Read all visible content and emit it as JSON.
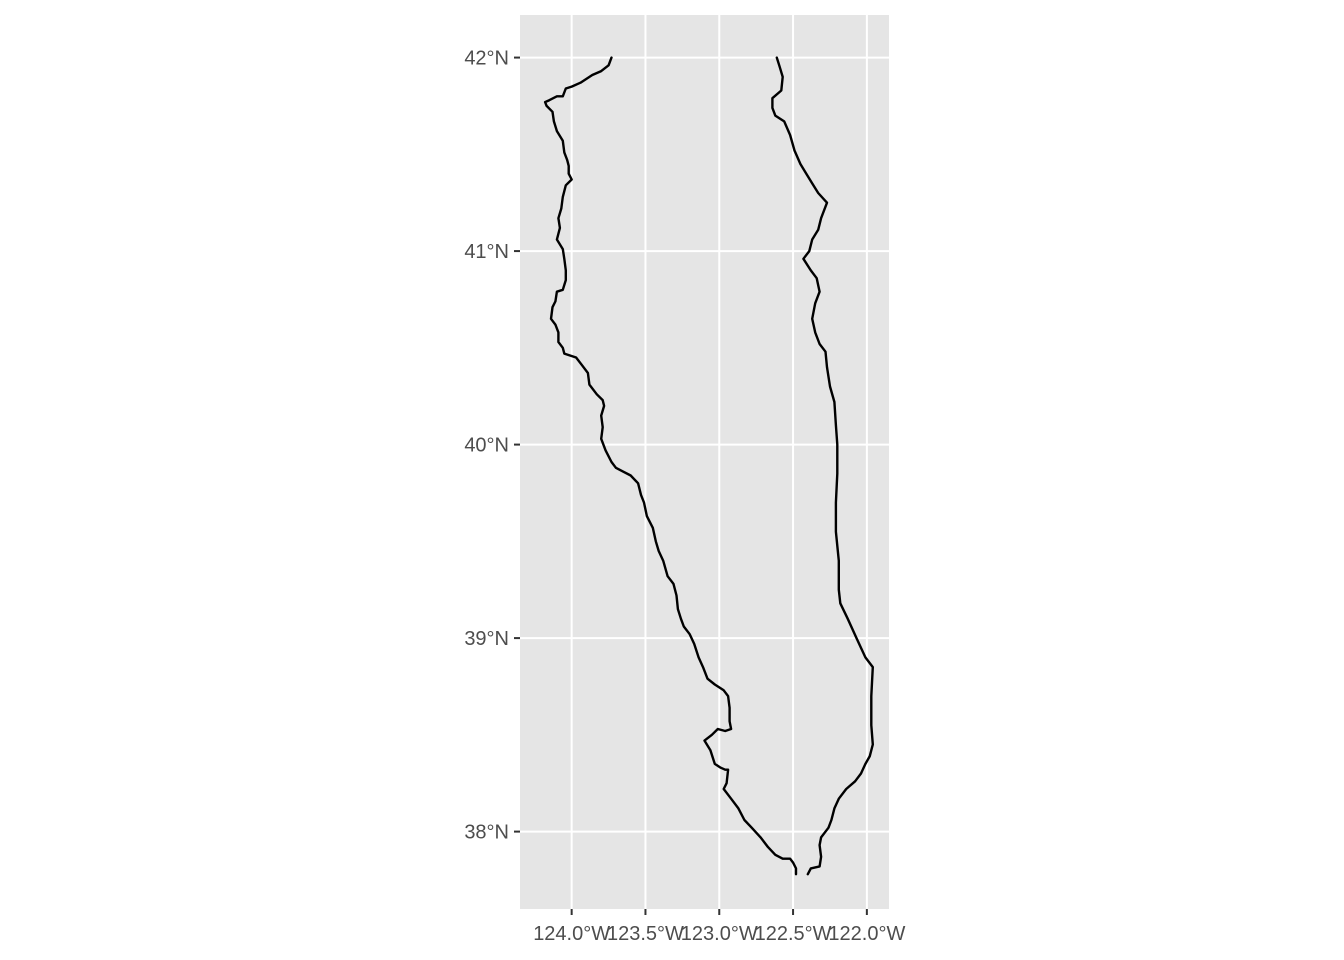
{
  "chart_data": {
    "type": "map",
    "projection": "geographic",
    "xlim": [
      -124.35,
      -121.85
    ],
    "ylim": [
      37.6,
      42.22
    ],
    "x_ticks": [
      {
        "value": -124.0,
        "label": "124.0°W"
      },
      {
        "value": -123.5,
        "label": "123.5°W"
      },
      {
        "value": -123.0,
        "label": "123.0°W"
      },
      {
        "value": -122.5,
        "label": "122.5°W"
      },
      {
        "value": -122.0,
        "label": "122.0°W"
      }
    ],
    "y_ticks": [
      {
        "value": 42,
        "label": "42°N"
      },
      {
        "value": 41,
        "label": "41°N"
      },
      {
        "value": 40,
        "label": "40°N"
      },
      {
        "value": 39,
        "label": "39°N"
      },
      {
        "value": 38,
        "label": "38°N"
      }
    ],
    "panel_background": "#e5e5e5",
    "grid_color": "#ffffff",
    "line_color": "#000000",
    "outlines": [
      {
        "coords": [
          [
            -123.73,
            42.0
          ],
          [
            -123.75,
            41.96
          ],
          [
            -123.8,
            41.93
          ],
          [
            -123.86,
            41.91
          ],
          [
            -123.94,
            41.87
          ],
          [
            -124.0,
            41.85
          ],
          [
            -124.04,
            41.84
          ],
          [
            -124.06,
            41.8
          ],
          [
            -124.1,
            41.8
          ],
          [
            -124.15,
            41.78
          ],
          [
            -124.18,
            41.77
          ],
          [
            -124.17,
            41.75
          ],
          [
            -124.13,
            41.72
          ],
          [
            -124.12,
            41.67
          ],
          [
            -124.1,
            41.62
          ],
          [
            -124.06,
            41.57
          ],
          [
            -124.05,
            41.51
          ],
          [
            -124.03,
            41.47
          ],
          [
            -124.02,
            41.44
          ],
          [
            -124.02,
            41.4
          ],
          [
            -124.0,
            41.37
          ],
          [
            -124.04,
            41.34
          ],
          [
            -124.06,
            41.28
          ],
          [
            -124.07,
            41.22
          ],
          [
            -124.09,
            41.17
          ],
          [
            -124.08,
            41.12
          ],
          [
            -124.1,
            41.06
          ],
          [
            -124.06,
            41.01
          ],
          [
            -124.05,
            40.96
          ],
          [
            -124.04,
            40.9
          ],
          [
            -124.04,
            40.85
          ],
          [
            -124.06,
            40.8
          ],
          [
            -124.1,
            40.79
          ],
          [
            -124.11,
            40.74
          ],
          [
            -124.13,
            40.71
          ],
          [
            -124.14,
            40.65
          ],
          [
            -124.11,
            40.62
          ],
          [
            -124.09,
            40.58
          ],
          [
            -124.09,
            40.53
          ],
          [
            -124.06,
            40.5
          ],
          [
            -124.05,
            40.47
          ],
          [
            -123.97,
            40.45
          ],
          [
            -123.93,
            40.41
          ],
          [
            -123.89,
            40.37
          ],
          [
            -123.88,
            40.31
          ],
          [
            -123.83,
            40.26
          ],
          [
            -123.79,
            40.23
          ],
          [
            -123.78,
            40.2
          ],
          [
            -123.8,
            40.15
          ],
          [
            -123.79,
            40.09
          ],
          [
            -123.8,
            40.03
          ],
          [
            -123.77,
            39.97
          ],
          [
            -123.73,
            39.91
          ],
          [
            -123.7,
            39.88
          ],
          [
            -123.65,
            39.86
          ],
          [
            -123.6,
            39.84
          ],
          [
            -123.55,
            39.8
          ],
          [
            -123.53,
            39.74
          ],
          [
            -123.51,
            39.7
          ],
          [
            -123.49,
            39.63
          ],
          [
            -123.45,
            39.57
          ],
          [
            -123.43,
            39.5
          ],
          [
            -123.41,
            39.45
          ],
          [
            -123.38,
            39.4
          ],
          [
            -123.35,
            39.32
          ],
          [
            -123.31,
            39.28
          ],
          [
            -123.29,
            39.22
          ],
          [
            -123.28,
            39.15
          ],
          [
            -123.26,
            39.1
          ],
          [
            -123.24,
            39.06
          ],
          [
            -123.2,
            39.02
          ],
          [
            -123.17,
            38.97
          ],
          [
            -123.14,
            38.9
          ],
          [
            -123.11,
            38.85
          ],
          [
            -123.08,
            38.79
          ],
          [
            -123.03,
            38.76
          ],
          [
            -122.97,
            38.73
          ],
          [
            -122.94,
            38.7
          ],
          [
            -122.93,
            38.64
          ],
          [
            -122.93,
            38.57
          ],
          [
            -122.92,
            38.53
          ],
          [
            -122.96,
            38.52
          ],
          [
            -123.01,
            38.53
          ],
          [
            -123.05,
            38.5
          ],
          [
            -123.1,
            38.47
          ],
          [
            -123.06,
            38.42
          ],
          [
            -123.03,
            38.35
          ],
          [
            -122.99,
            38.33
          ],
          [
            -122.96,
            38.32
          ],
          [
            -122.94,
            38.32
          ],
          [
            -122.95,
            38.25
          ],
          [
            -122.97,
            38.22
          ],
          [
            -122.92,
            38.17
          ],
          [
            -122.87,
            38.12
          ],
          [
            -122.83,
            38.06
          ],
          [
            -122.78,
            38.02
          ],
          [
            -122.72,
            37.97
          ],
          [
            -122.67,
            37.92
          ],
          [
            -122.62,
            37.88
          ],
          [
            -122.57,
            37.86
          ],
          [
            -122.52,
            37.86
          ],
          [
            -122.5,
            37.84
          ],
          [
            -122.48,
            37.81
          ],
          [
            -122.48,
            37.78
          ]
        ]
      },
      {
        "coords": [
          [
            -122.61,
            42.0
          ],
          [
            -122.59,
            41.95
          ],
          [
            -122.57,
            41.9
          ],
          [
            -122.58,
            41.83
          ],
          [
            -122.64,
            41.79
          ],
          [
            -122.64,
            41.74
          ],
          [
            -122.62,
            41.7
          ],
          [
            -122.56,
            41.67
          ],
          [
            -122.52,
            41.6
          ],
          [
            -122.49,
            41.52
          ],
          [
            -122.45,
            41.45
          ],
          [
            -122.41,
            41.4
          ],
          [
            -122.37,
            41.35
          ],
          [
            -122.33,
            41.3
          ],
          [
            -122.27,
            41.25
          ],
          [
            -122.31,
            41.17
          ],
          [
            -122.33,
            41.11
          ],
          [
            -122.37,
            41.06
          ],
          [
            -122.39,
            41.0
          ],
          [
            -122.43,
            40.96
          ],
          [
            -122.38,
            40.9
          ],
          [
            -122.34,
            40.86
          ],
          [
            -122.32,
            40.79
          ],
          [
            -122.35,
            40.73
          ],
          [
            -122.37,
            40.65
          ],
          [
            -122.35,
            40.58
          ],
          [
            -122.32,
            40.52
          ],
          [
            -122.28,
            40.48
          ],
          [
            -122.27,
            40.4
          ],
          [
            -122.25,
            40.3
          ],
          [
            -122.22,
            40.22
          ],
          [
            -122.21,
            40.1
          ],
          [
            -122.2,
            40.0
          ],
          [
            -122.2,
            39.85
          ],
          [
            -122.21,
            39.7
          ],
          [
            -122.21,
            39.55
          ],
          [
            -122.19,
            39.4
          ],
          [
            -122.19,
            39.25
          ],
          [
            -122.18,
            39.18
          ],
          [
            -122.13,
            39.1
          ],
          [
            -122.07,
            39.0
          ],
          [
            -122.01,
            38.9
          ],
          [
            -121.96,
            38.85
          ],
          [
            -121.97,
            38.7
          ],
          [
            -121.97,
            38.55
          ],
          [
            -121.96,
            38.45
          ],
          [
            -121.98,
            38.39
          ],
          [
            -122.01,
            38.35
          ],
          [
            -122.04,
            38.3
          ],
          [
            -122.08,
            38.26
          ],
          [
            -122.14,
            38.22
          ],
          [
            -122.19,
            38.17
          ],
          [
            -122.22,
            38.12
          ],
          [
            -122.24,
            38.06
          ],
          [
            -122.26,
            38.02
          ],
          [
            -122.31,
            37.97
          ],
          [
            -122.32,
            37.93
          ],
          [
            -122.31,
            37.87
          ],
          [
            -122.32,
            37.82
          ],
          [
            -122.38,
            37.81
          ],
          [
            -122.4,
            37.78
          ]
        ]
      }
    ]
  }
}
